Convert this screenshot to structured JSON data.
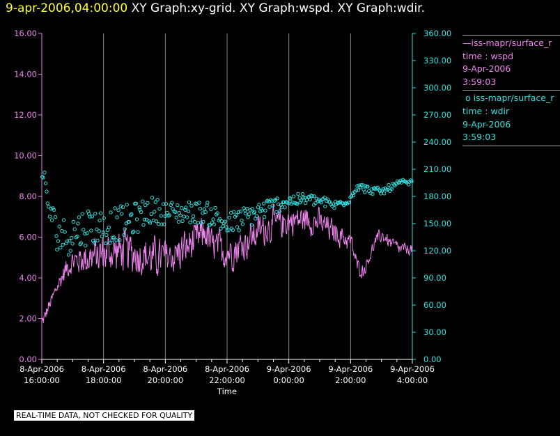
{
  "header": {
    "timestamp": "9-apr-2006,04:00:00",
    "titles": "XY Graph:xy-grid.  XY Graph:wspd.  XY Graph:wdir."
  },
  "legend": {
    "entries": [
      {
        "mark": "—",
        "source": "iss-mapr/surface_r",
        "field": "time : wspd",
        "date": "9-Apr-2006",
        "time": "3:59:03",
        "color": "#ee82ee"
      },
      {
        "mark": "o",
        "source": "iss-mapr/surface_r",
        "field": "time : wdir",
        "date": "9-Apr-2006",
        "time": "3:59:03",
        "color": "#33e0e0"
      }
    ]
  },
  "note": "REAL-TIME DATA, NOT CHECKED FOR QUALITY",
  "chart_data": {
    "type": "line",
    "xlabel": "Time",
    "xlim_hours": [
      16.0,
      28.0
    ],
    "x_ticks": [
      {
        "hour": 16,
        "date": "8-Apr-2006",
        "time": "16:00:00"
      },
      {
        "hour": 18,
        "date": "8-Apr-2006",
        "time": "18:00:00"
      },
      {
        "hour": 20,
        "date": "8-Apr-2006",
        "time": "20:00:00"
      },
      {
        "hour": 22,
        "date": "8-Apr-2006",
        "time": "22:00:00"
      },
      {
        "hour": 24,
        "date": "9-Apr-2006",
        "time": "0:00:00"
      },
      {
        "hour": 26,
        "date": "9-Apr-2006",
        "time": "2:00:00"
      },
      {
        "hour": 28,
        "date": "9-Apr-2006",
        "time": "4:00:00"
      }
    ],
    "grid_vertical": true,
    "y_left": {
      "ylim": [
        0,
        16
      ],
      "ticks": [
        "0.00",
        "2.00",
        "4.00",
        "6.00",
        "8.00",
        "10.00",
        "12.00",
        "14.00",
        "16.00"
      ],
      "color": "#ee82ee"
    },
    "y_right": {
      "ylim": [
        0,
        360
      ],
      "ticks": [
        "0.00",
        "30.00",
        "60.00",
        "90.00",
        "120.00",
        "150.00",
        "180.00",
        "210.00",
        "240.00",
        "270.00",
        "300.00",
        "330.00",
        "360.00"
      ],
      "color": "#33e0e0"
    },
    "series": [
      {
        "name": "wspd",
        "axis": "left",
        "style": "line",
        "color": "#ee82ee",
        "keypoints": [
          [
            16.0,
            1.8
          ],
          [
            16.2,
            2.5
          ],
          [
            16.5,
            3.6
          ],
          [
            16.8,
            4.5
          ],
          [
            17.0,
            4.8
          ],
          [
            17.5,
            5.0
          ],
          [
            18.0,
            5.2
          ],
          [
            18.5,
            5.3
          ],
          [
            19.0,
            5.2
          ],
          [
            19.5,
            5.0
          ],
          [
            20.0,
            5.0
          ],
          [
            20.5,
            5.3
          ],
          [
            21.0,
            5.8
          ],
          [
            21.3,
            6.3
          ],
          [
            21.5,
            5.5
          ],
          [
            22.0,
            5.3
          ],
          [
            22.5,
            5.6
          ],
          [
            23.0,
            6.3
          ],
          [
            23.5,
            6.6
          ],
          [
            24.0,
            6.8
          ],
          [
            24.5,
            6.9
          ],
          [
            25.0,
            6.7
          ],
          [
            25.5,
            6.2
          ],
          [
            26.0,
            5.8
          ],
          [
            26.2,
            4.6
          ],
          [
            26.4,
            4.3
          ],
          [
            26.6,
            5.0
          ],
          [
            26.8,
            5.8
          ],
          [
            27.0,
            6.1
          ],
          [
            27.3,
            5.7
          ],
          [
            27.6,
            5.4
          ],
          [
            28.0,
            5.4
          ]
        ],
        "noise": [
          [
            16.0,
            0.5
          ],
          [
            16.5,
            0.7
          ],
          [
            17.0,
            1.0
          ],
          [
            17.5,
            1.5
          ],
          [
            18.0,
            1.6
          ],
          [
            19.0,
            1.8
          ],
          [
            20.0,
            1.6
          ],
          [
            21.0,
            1.5
          ],
          [
            22.0,
            1.5
          ],
          [
            23.0,
            1.4
          ],
          [
            24.0,
            1.2
          ],
          [
            25.0,
            1.1
          ],
          [
            26.0,
            0.8
          ],
          [
            26.5,
            0.5
          ],
          [
            27.0,
            0.6
          ],
          [
            28.0,
            0.5
          ]
        ]
      },
      {
        "name": "wdir",
        "axis": "right",
        "style": "scatter",
        "color": "#33e0e0",
        "keypoints": [
          [
            16.0,
            195
          ],
          [
            16.05,
            205
          ],
          [
            16.15,
            180
          ],
          [
            16.3,
            160
          ],
          [
            16.5,
            140
          ],
          [
            16.8,
            135
          ],
          [
            17.0,
            140
          ],
          [
            17.5,
            148
          ],
          [
            18.0,
            146
          ],
          [
            18.5,
            150
          ],
          [
            19.0,
            155
          ],
          [
            19.5,
            165
          ],
          [
            20.0,
            162
          ],
          [
            20.5,
            162
          ],
          [
            21.0,
            163
          ],
          [
            21.5,
            160
          ],
          [
            22.0,
            148
          ],
          [
            22.5,
            155
          ],
          [
            23.0,
            163
          ],
          [
            23.5,
            170
          ],
          [
            24.0,
            175
          ],
          [
            24.5,
            177
          ],
          [
            25.0,
            175
          ],
          [
            25.5,
            170
          ],
          [
            26.0,
            178
          ],
          [
            26.2,
            192
          ],
          [
            26.5,
            188
          ],
          [
            27.0,
            185
          ],
          [
            27.3,
            190
          ],
          [
            27.6,
            195
          ],
          [
            28.0,
            195
          ]
        ],
        "scatter_spread": [
          [
            16.0,
            12
          ],
          [
            16.5,
            20
          ],
          [
            17.0,
            22
          ],
          [
            18.0,
            20
          ],
          [
            19.0,
            18
          ],
          [
            20.0,
            13
          ],
          [
            21.0,
            12
          ],
          [
            22.0,
            14
          ],
          [
            23.0,
            12
          ],
          [
            24.0,
            7
          ],
          [
            25.0,
            6
          ],
          [
            26.0,
            5
          ],
          [
            27.0,
            4
          ],
          [
            28.0,
            3
          ]
        ]
      }
    ]
  }
}
